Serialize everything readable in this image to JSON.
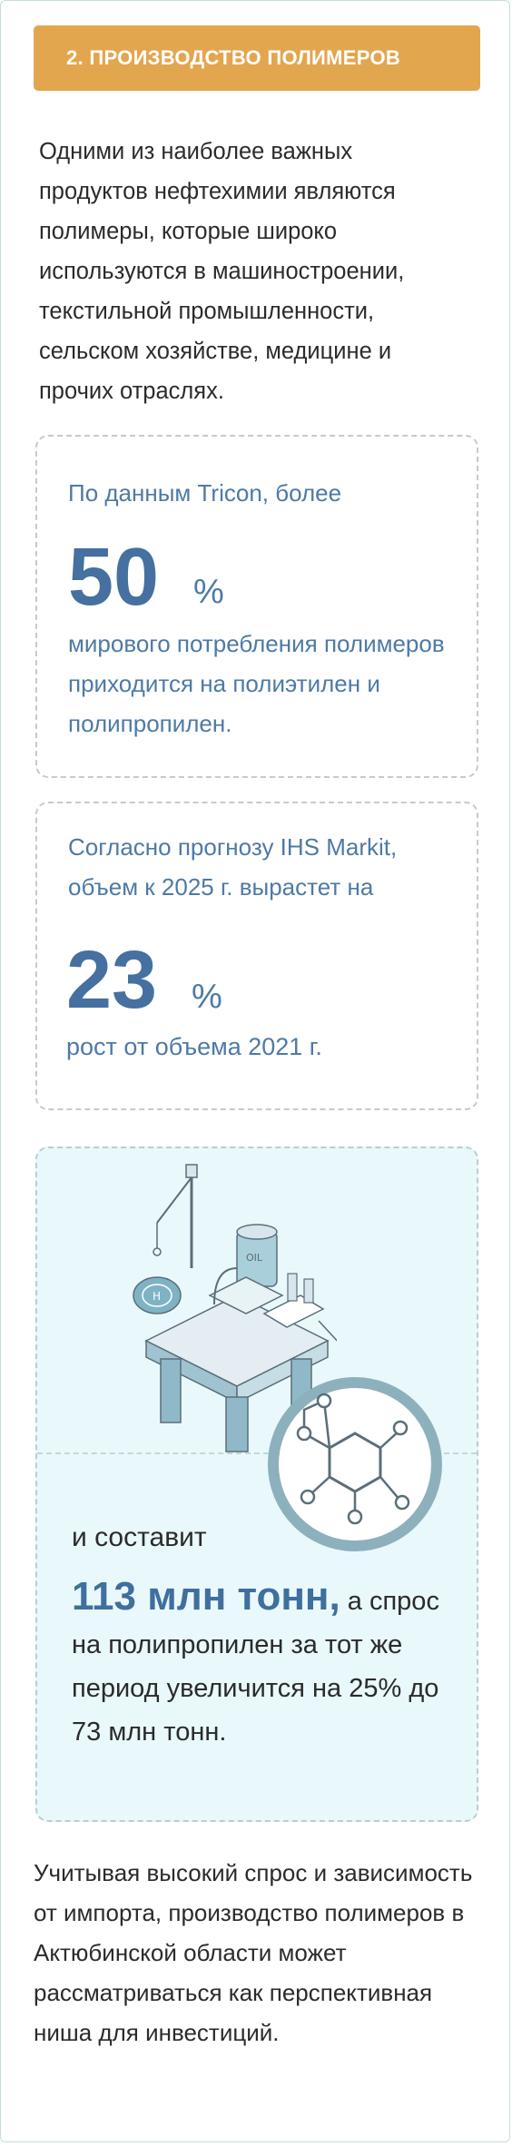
{
  "header": {
    "title": "2.  ПРОИЗВОДСТВО ПОЛИМЕРОВ"
  },
  "intro": "Одними из наиболее важных продуктов нефтехимии являются полимеры, которые широко используются в машиностроении, текстильной промышленности, сельском хозяйстве, медицине и прочих отраслях.",
  "stat1": {
    "lead": "По данным Tricon, более",
    "value": "50",
    "unit": "%",
    "caption": "мирового потребления полимеров приходится на полиэтилен и полипропилен."
  },
  "stat2": {
    "lead": "Согласно прогнозу IHS Markit, объем к 2025 г. вырастет на",
    "value": "23",
    "unit": "%",
    "caption": "рост от объема 2021 г."
  },
  "stat3": {
    "lead": "и составит",
    "highlight": "113 млн тонн,",
    "rest": " а спрос на полипропилен за тот же период увеличится на 25% до 73 млн тонн."
  },
  "illustration": {
    "icon": "oil-platform-icon",
    "badge_icon": "molecule-icon",
    "tank_label": "OIL",
    "heli_label": "H"
  },
  "outro": "Учитывая высокий спрос и зависимость от импорта, производство полимеров в Актюбинской области может рассматриваться как перспективная ниша для инвестиций.",
  "colors": {
    "accent": "#e2a64f",
    "blue": "#4570a0",
    "teal_bg": "#e9f8fa",
    "teal": "#8db0bd"
  }
}
